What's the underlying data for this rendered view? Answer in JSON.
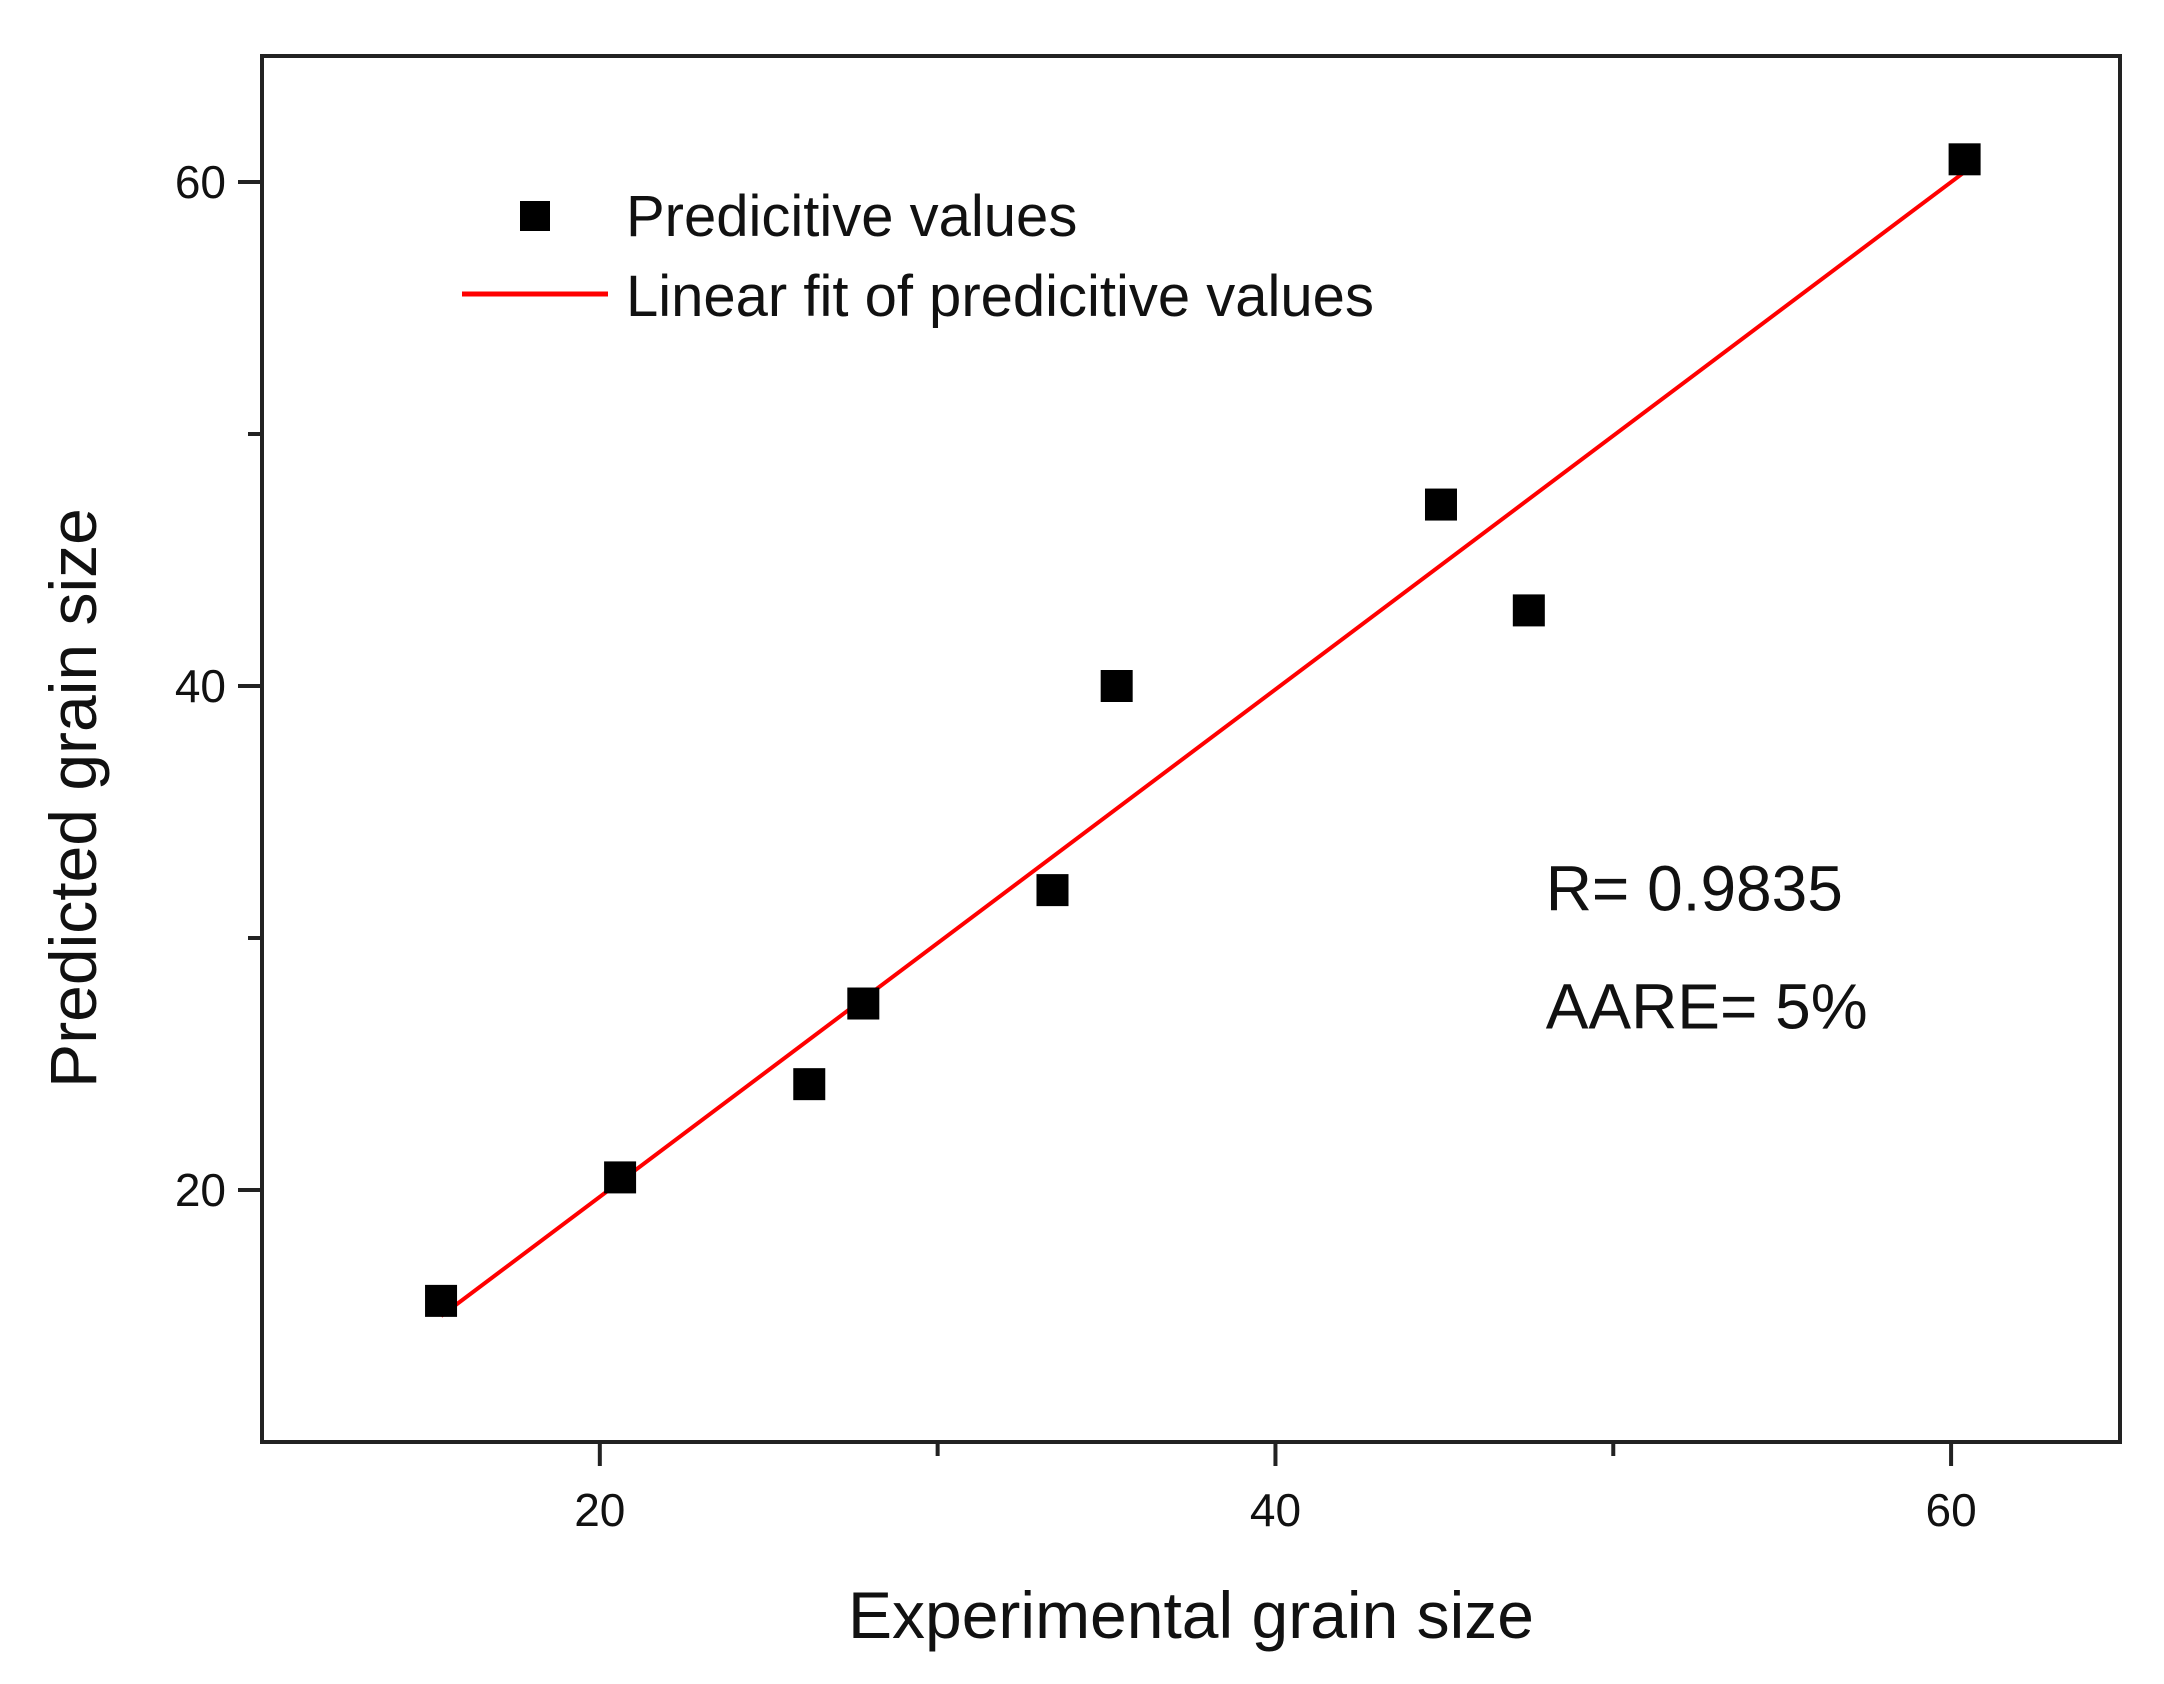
{
  "chart_data": {
    "type": "scatter",
    "title": "",
    "xlabel": "Experimental grain size",
    "ylabel": "Predicted grain size",
    "xlim": [
      10,
      65
    ],
    "ylim": [
      10,
      65
    ],
    "x_ticks_labeled": [
      20,
      40,
      60
    ],
    "x_ticks_minor": [
      30,
      50
    ],
    "y_ticks_labeled": [
      20,
      40,
      60
    ],
    "y_ticks_minor": [
      30,
      50
    ],
    "grid": false,
    "legend_position": "top-left",
    "series": [
      {
        "name": "Predicitive values",
        "kind": "scatter",
        "marker": "square",
        "color": "#000000",
        "points": [
          {
            "x": 15.3,
            "y": 15.6
          },
          {
            "x": 20.6,
            "y": 20.5
          },
          {
            "x": 26.2,
            "y": 24.2
          },
          {
            "x": 27.8,
            "y": 27.4
          },
          {
            "x": 33.4,
            "y": 31.9
          },
          {
            "x": 35.3,
            "y": 40.0
          },
          {
            "x": 44.9,
            "y": 47.2
          },
          {
            "x": 47.5,
            "y": 43.0
          },
          {
            "x": 60.4,
            "y": 60.9
          }
        ]
      },
      {
        "name": "Linear fit of predicitive values",
        "kind": "line",
        "color": "#ff0000",
        "points": [
          {
            "x": 15.3,
            "y": 15.0
          },
          {
            "x": 60.4,
            "y": 60.4
          }
        ]
      }
    ],
    "annotations": [
      {
        "text": "R= 0.9835",
        "x": 48.0,
        "y": 31.1
      },
      {
        "text": "AARE= 5%",
        "x": 48.0,
        "y": 26.4
      }
    ]
  }
}
